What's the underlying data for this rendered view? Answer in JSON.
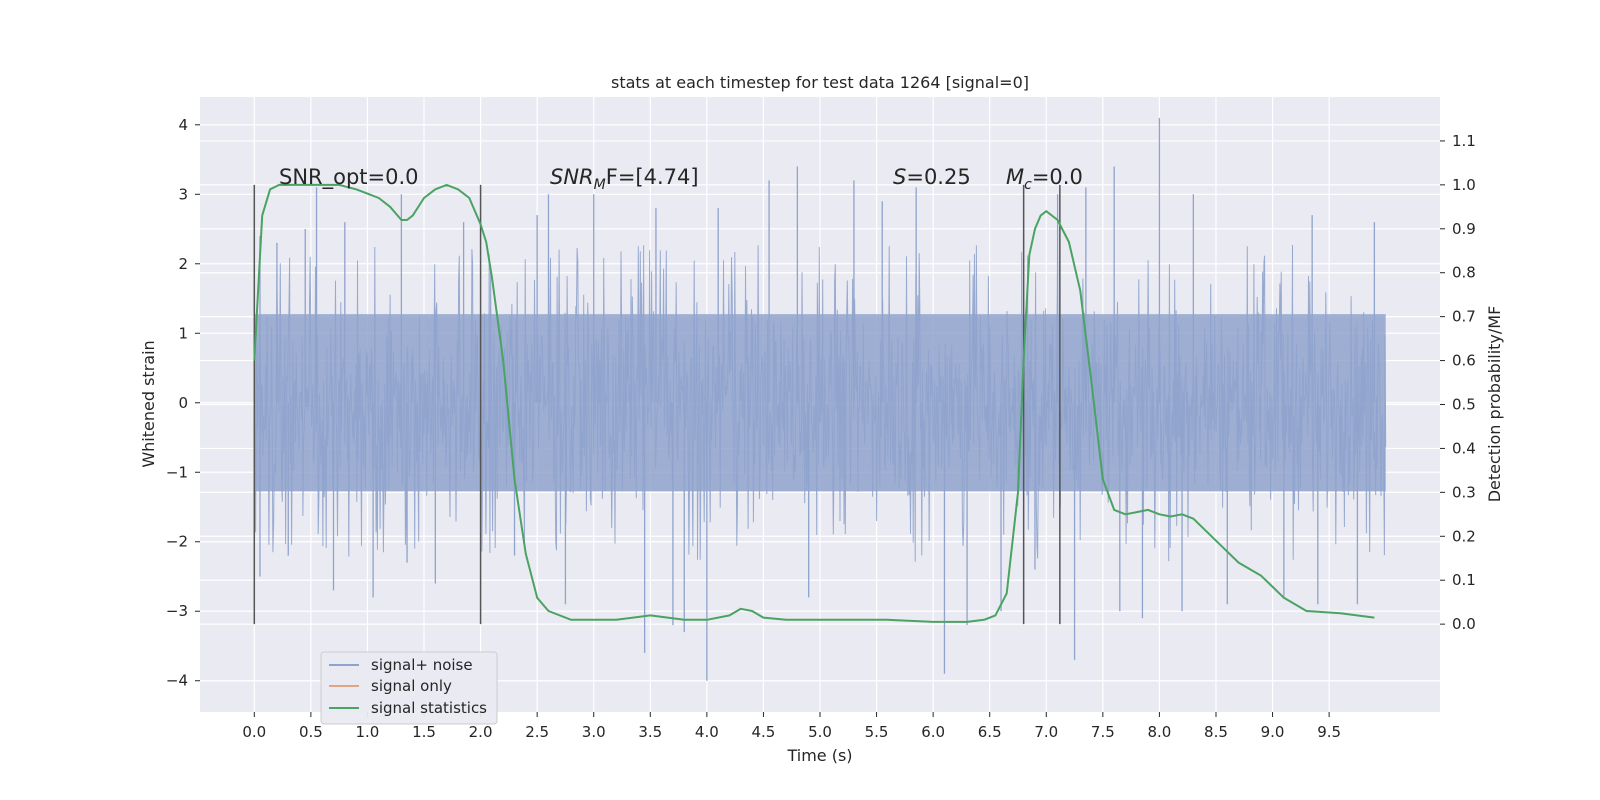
{
  "chart_data": {
    "type": "line",
    "title": "stats at each timestep for test data 1264 [signal=0]",
    "xlabel": "Time (s)",
    "ylabel": "Whitened strain",
    "y2label": "Detection probability/MF",
    "xlim": [
      -0.48,
      10.48
    ],
    "ylim": [
      -4.45,
      4.4
    ],
    "y2lim": [
      -0.2,
      1.2
    ],
    "x_ticks": [
      0.0,
      0.5,
      1.0,
      1.5,
      2.0,
      2.5,
      3.0,
      3.5,
      4.0,
      4.5,
      5.0,
      5.5,
      6.0,
      6.5,
      7.0,
      7.5,
      8.0,
      8.5,
      9.0,
      9.5
    ],
    "x_tick_labels": [
      "0.0",
      "0.5",
      "1.0",
      "1.5",
      "2.0",
      "2.5",
      "3.0",
      "3.5",
      "4.0",
      "4.5",
      "5.0",
      "5.5",
      "6.0",
      "6.5",
      "7.0",
      "7.5",
      "8.0",
      "8.5",
      "9.0",
      "9.5"
    ],
    "y_ticks": [
      -4,
      -3,
      -2,
      -1,
      0,
      1,
      2,
      3,
      4
    ],
    "y_tick_labels": [
      "−4",
      "−3",
      "−2",
      "−1",
      "0",
      "1",
      "2",
      "3",
      "4"
    ],
    "y2_ticks": [
      0.0,
      0.1,
      0.2,
      0.3,
      0.4,
      0.5,
      0.6,
      0.7,
      0.8,
      0.9,
      1.0,
      1.1
    ],
    "y2_tick_labels": [
      "0.0",
      "0.1",
      "0.2",
      "0.3",
      "0.4",
      "0.5",
      "0.6",
      "0.7",
      "0.8",
      "0.9",
      "1.0",
      "1.1"
    ],
    "grid": true,
    "legend_position": "bottom-left",
    "series": [
      {
        "name": "signal+ noise",
        "axis": "left",
        "color": "#8fa3cc",
        "style": "dense noise trace",
        "x_range": [
          0.0,
          10.0
        ],
        "typical_envelope": [
          -1.5,
          1.5
        ],
        "spikes": [
          {
            "x": 0.05,
            "y": 2.4
          },
          {
            "x": 0.05,
            "y": -2.5
          },
          {
            "x": 0.2,
            "y": 2.3
          },
          {
            "x": 0.3,
            "y": -2.2
          },
          {
            "x": 0.45,
            "y": 2.5
          },
          {
            "x": 0.55,
            "y": 3.1
          },
          {
            "x": 0.7,
            "y": -2.7
          },
          {
            "x": 0.8,
            "y": 2.6
          },
          {
            "x": 1.05,
            "y": -2.8
          },
          {
            "x": 1.3,
            "y": 3.0
          },
          {
            "x": 1.35,
            "y": -2.3
          },
          {
            "x": 1.6,
            "y": -2.6
          },
          {
            "x": 1.85,
            "y": 2.6
          },
          {
            "x": 2.3,
            "y": -2.2
          },
          {
            "x": 2.5,
            "y": 2.7
          },
          {
            "x": 2.6,
            "y": 3.0
          },
          {
            "x": 2.75,
            "y": -2.9
          },
          {
            "x": 3.0,
            "y": 3.0
          },
          {
            "x": 3.45,
            "y": -3.6
          },
          {
            "x": 3.55,
            "y": 2.8
          },
          {
            "x": 3.7,
            "y": -3.2
          },
          {
            "x": 3.8,
            "y": -3.3
          },
          {
            "x": 4.0,
            "y": -4.0
          },
          {
            "x": 4.1,
            "y": 2.8
          },
          {
            "x": 4.55,
            "y": 3.2
          },
          {
            "x": 4.8,
            "y": 3.4
          },
          {
            "x": 4.9,
            "y": -2.8
          },
          {
            "x": 5.3,
            "y": 3.2
          },
          {
            "x": 5.55,
            "y": 2.9
          },
          {
            "x": 5.85,
            "y": 3.1
          },
          {
            "x": 6.1,
            "y": -3.9
          },
          {
            "x": 6.3,
            "y": -3.2
          },
          {
            "x": 6.6,
            "y": -3.0
          },
          {
            "x": 6.9,
            "y": -2.4
          },
          {
            "x": 7.1,
            "y": 3.0
          },
          {
            "x": 7.25,
            "y": -3.7
          },
          {
            "x": 7.35,
            "y": 3.1
          },
          {
            "x": 7.6,
            "y": 3.4
          },
          {
            "x": 7.65,
            "y": -3.0
          },
          {
            "x": 7.85,
            "y": -3.1
          },
          {
            "x": 8.0,
            "y": 4.1
          },
          {
            "x": 8.2,
            "y": -3.0
          },
          {
            "x": 8.3,
            "y": 3.0
          },
          {
            "x": 8.6,
            "y": -2.9
          },
          {
            "x": 9.1,
            "y": -2.8
          },
          {
            "x": 9.35,
            "y": 2.7
          },
          {
            "x": 9.4,
            "y": -2.9
          },
          {
            "x": 9.75,
            "y": -2.9
          },
          {
            "x": 9.9,
            "y": 2.6
          }
        ]
      },
      {
        "name": "signal only",
        "axis": "left",
        "color": "#e1a584",
        "values": []
      },
      {
        "name": "signal statistics",
        "axis": "right",
        "color": "#4aa362",
        "x": [
          0.0,
          0.07,
          0.14,
          0.22,
          0.35,
          0.55,
          0.75,
          0.9,
          1.0,
          1.1,
          1.2,
          1.3,
          1.35,
          1.4,
          1.5,
          1.6,
          1.7,
          1.8,
          1.9,
          2.0,
          2.05,
          2.1,
          2.2,
          2.3,
          2.4,
          2.5,
          2.6,
          2.8,
          3.0,
          3.2,
          3.5,
          3.8,
          4.0,
          4.2,
          4.3,
          4.4,
          4.5,
          4.7,
          5.0,
          5.3,
          5.6,
          6.0,
          6.3,
          6.45,
          6.55,
          6.65,
          6.75,
          6.8,
          6.85,
          6.9,
          6.95,
          7.0,
          7.1,
          7.2,
          7.3,
          7.4,
          7.5,
          7.6,
          7.7,
          7.8,
          7.9,
          8.0,
          8.1,
          8.2,
          8.3,
          8.5,
          8.7,
          8.9,
          9.1,
          9.3,
          9.6,
          9.9
        ],
        "values": [
          0.6,
          0.93,
          0.99,
          1.0,
          1.0,
          1.0,
          1.0,
          0.99,
          0.98,
          0.97,
          0.95,
          0.92,
          0.92,
          0.93,
          0.97,
          0.99,
          1.0,
          0.99,
          0.97,
          0.91,
          0.87,
          0.79,
          0.6,
          0.33,
          0.16,
          0.06,
          0.03,
          0.01,
          0.01,
          0.01,
          0.02,
          0.01,
          0.01,
          0.02,
          0.035,
          0.03,
          0.015,
          0.01,
          0.01,
          0.01,
          0.01,
          0.005,
          0.005,
          0.01,
          0.02,
          0.07,
          0.3,
          0.6,
          0.84,
          0.9,
          0.93,
          0.94,
          0.92,
          0.87,
          0.76,
          0.55,
          0.33,
          0.26,
          0.25,
          0.255,
          0.26,
          0.25,
          0.245,
          0.25,
          0.24,
          0.19,
          0.14,
          0.11,
          0.06,
          0.03,
          0.025,
          0.015
        ]
      }
    ],
    "vertical_lines": [
      0.0,
      2.0,
      6.8,
      7.12
    ],
    "vertical_line_range": [
      -0.0,
      1.0
    ],
    "annotations": [
      {
        "text": "SNR_opt=0.0",
        "x": 0.2,
        "y": 1.0,
        "style": "normal"
      },
      {
        "text": "SNR",
        "sub": "M",
        "rest": "F=[4.74]",
        "x": 2.6,
        "y": 1.0,
        "style": "italic"
      },
      {
        "text": "S",
        "rest": "=0.25",
        "x": 5.6,
        "y": 1.0,
        "style": "italic"
      },
      {
        "text": "M",
        "sub": "c",
        "rest": "=0.0",
        "x": 6.6,
        "y": 1.0,
        "style": "italic"
      }
    ]
  },
  "legend": {
    "items": [
      {
        "label": "signal+ noise",
        "color": "#8fa3cc"
      },
      {
        "label": "signal only",
        "color": "#e1a584"
      },
      {
        "label": "signal statistics",
        "color": "#4aa362"
      }
    ]
  }
}
